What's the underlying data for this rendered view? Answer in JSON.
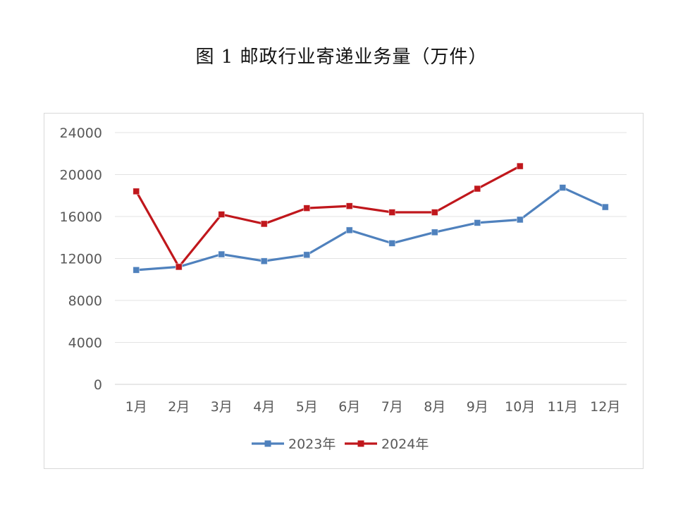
{
  "chart_data": {
    "type": "line",
    "title": "图 1   邮政行业寄递业务量（万件）",
    "xlabel": "",
    "ylabel": "",
    "categories": [
      "1月",
      "2月",
      "3月",
      "4月",
      "5月",
      "6月",
      "7月",
      "8月",
      "9月",
      "10月",
      "11月",
      "12月"
    ],
    "ylim": [
      0,
      24000
    ],
    "yticks": [
      "0",
      "4000",
      "8000",
      "12000",
      "16000",
      "20000",
      "24000"
    ],
    "grid": true,
    "legend_position": "bottom",
    "series": [
      {
        "name": "2023年",
        "color": "#4f81bd",
        "marker": "square",
        "values": [
          10900,
          11200,
          12400,
          11750,
          12350,
          14700,
          13450,
          14500,
          15400,
          15700,
          18750,
          16900
        ]
      },
      {
        "name": "2024年",
        "color": "#c0171c",
        "marker": "square",
        "values": [
          18400,
          11200,
          16200,
          15300,
          16800,
          17000,
          16400,
          16400,
          18650,
          20800,
          null,
          null
        ]
      }
    ]
  }
}
